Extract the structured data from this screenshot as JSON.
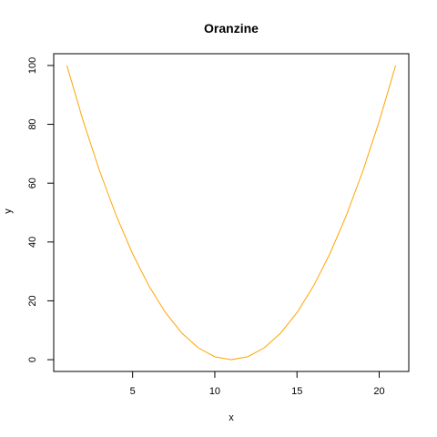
{
  "chart_data": {
    "type": "line",
    "title": "Oranzine",
    "xlabel": "x",
    "ylabel": "y",
    "xlim": [
      0.2,
      21.8
    ],
    "ylim": [
      -4,
      104
    ],
    "x_ticks": [
      5,
      10,
      15,
      20
    ],
    "y_ticks": [
      0,
      20,
      40,
      60,
      80,
      100
    ],
    "grid": false,
    "series": [
      {
        "color": "#FFA500",
        "x": [
          1,
          2,
          3,
          4,
          5,
          6,
          7,
          8,
          9,
          10,
          11,
          12,
          13,
          14,
          15,
          16,
          17,
          18,
          19,
          20,
          21
        ],
        "y": [
          100,
          81,
          64,
          49,
          36,
          25,
          16,
          9,
          4,
          1,
          0,
          1,
          4,
          9,
          16,
          25,
          36,
          49,
          64,
          81,
          100
        ]
      }
    ]
  }
}
